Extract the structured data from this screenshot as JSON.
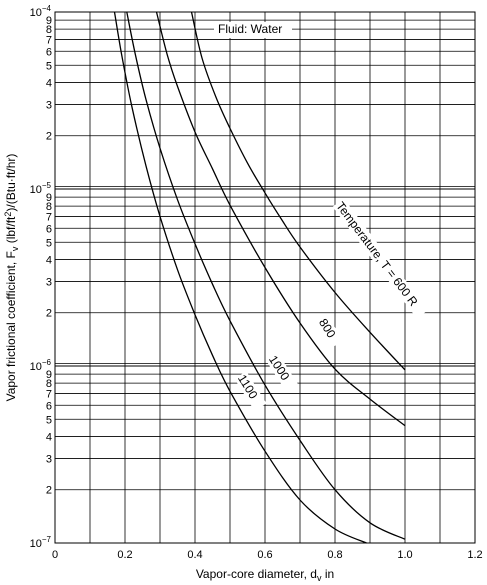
{
  "chart_data": {
    "type": "line",
    "title": "",
    "annotation": "Fluid: Water",
    "xlabel": "Vapor-core diameter, d",
    "xlabel_sub": "v",
    "xlabel_unit": " in",
    "ylabel": "Vapor frictional coefficient, F",
    "ylabel_sub": "v",
    "ylabel_unit": " (lbf/ft",
    "ylabel_sup": "2",
    "ylabel_end": ")/(Btu·ft/hr)",
    "xlim": [
      0,
      1.2
    ],
    "ylim": [
      1e-07,
      0.0001
    ],
    "yscale": "log",
    "grid": true,
    "x_ticks": [
      "0",
      "0.2",
      "0.4",
      "0.6",
      "0.8",
      "1.0",
      "1.2"
    ],
    "y_decade_ticks": [
      {
        "base": "10",
        "exp": "−7"
      },
      {
        "base": "10",
        "exp": "−6"
      },
      {
        "base": "10",
        "exp": "−5"
      },
      {
        "base": "10",
        "exp": "−4"
      }
    ],
    "y_minor_ticks": [
      "2",
      "3",
      "4",
      "5",
      "6",
      "7",
      "8",
      "9"
    ],
    "series": [
      {
        "name": "Temperature, T = 600 R",
        "label_angle": 53,
        "points": [
          [
            0.39,
            0.0001
          ],
          [
            0.42,
            5.5e-05
          ],
          [
            0.46,
            3.3e-05
          ],
          [
            0.5,
            2.2e-05
          ],
          [
            0.55,
            1.4e-05
          ],
          [
            0.6,
            9.5e-06
          ],
          [
            0.65,
            6.6e-06
          ],
          [
            0.7,
            4.7e-06
          ],
          [
            0.8,
            2.6e-06
          ],
          [
            0.9,
            1.55e-06
          ],
          [
            1.0,
            9.5e-07
          ]
        ]
      },
      {
        "name": "800",
        "label_angle": 58,
        "points": [
          [
            0.29,
            0.0001
          ],
          [
            0.32,
            5.8e-05
          ],
          [
            0.35,
            3.8e-05
          ],
          [
            0.4,
            2.1e-05
          ],
          [
            0.45,
            1.3e-05
          ],
          [
            0.5,
            8.1e-06
          ],
          [
            0.6,
            3.6e-06
          ],
          [
            0.7,
            1.75e-06
          ],
          [
            0.8,
            9.6e-07
          ],
          [
            0.9,
            6.5e-07
          ],
          [
            1.0,
            4.6e-07
          ]
        ]
      },
      {
        "name": "1000",
        "label_angle": 57,
        "points": [
          [
            0.205,
            0.0001
          ],
          [
            0.23,
            5.7e-05
          ],
          [
            0.26,
            3.2e-05
          ],
          [
            0.3,
            1.7e-05
          ],
          [
            0.35,
            8.7e-06
          ],
          [
            0.4,
            4.9e-06
          ],
          [
            0.45,
            2.9e-06
          ],
          [
            0.5,
            1.8e-06
          ],
          [
            0.6,
            7.8e-07
          ],
          [
            0.7,
            3.8e-07
          ],
          [
            0.8,
            2e-07
          ],
          [
            0.9,
            1.3e-07
          ],
          [
            1.0,
            1.05e-07
          ]
        ]
      },
      {
        "name": "1100",
        "label_angle": 58,
        "points": [
          [
            0.17,
            0.0001
          ],
          [
            0.19,
            5.8e-05
          ],
          [
            0.22,
            2.9e-05
          ],
          [
            0.26,
            1.35e-05
          ],
          [
            0.3,
            7e-06
          ],
          [
            0.35,
            3.5e-06
          ],
          [
            0.4,
            1.95e-06
          ],
          [
            0.45,
            1.15e-06
          ],
          [
            0.5,
            7.2e-07
          ],
          [
            0.6,
            3.3e-07
          ],
          [
            0.7,
            1.75e-07
          ],
          [
            0.8,
            1.2e-07
          ],
          [
            0.89,
            1e-07
          ]
        ]
      }
    ]
  }
}
